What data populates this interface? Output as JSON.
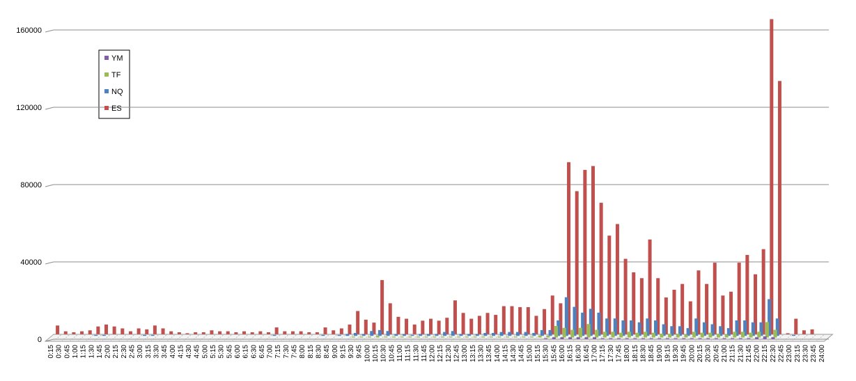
{
  "chart_data": {
    "type": "bar3d",
    "categories": [
      "0:15",
      "0:30",
      "0:45",
      "1:00",
      "1:15",
      "1:30",
      "1:45",
      "2:00",
      "2:15",
      "2:30",
      "2:45",
      "3:00",
      "3:15",
      "3:30",
      "3:45",
      "4:00",
      "4:15",
      "4:30",
      "4:45",
      "5:00",
      "5:15",
      "5:30",
      "5:45",
      "6:00",
      "6:15",
      "6:30",
      "6:45",
      "7:00",
      "7:15",
      "7:30",
      "7:45",
      "8:00",
      "8:15",
      "8:30",
      "8:45",
      "9:00",
      "9:15",
      "9:30",
      "9:45",
      "10:00",
      "10:15",
      "10:30",
      "10:45",
      "11:00",
      "11:15",
      "11:30",
      "11:45",
      "12:00",
      "12:15",
      "12:30",
      "12:45",
      "13:00",
      "13:15",
      "13:30",
      "13:45",
      "14:00",
      "14:15",
      "14:30",
      "14:45",
      "15:00",
      "15:15",
      "15:30",
      "15:45",
      "16:00",
      "16:15",
      "16:30",
      "16:45",
      "17:00",
      "17:15",
      "17:30",
      "17:45",
      "18:00",
      "18:15",
      "18:30",
      "18:45",
      "19:00",
      "19:15",
      "19:30",
      "19:45",
      "20:00",
      "20:15",
      "20:30",
      "20:45",
      "21:00",
      "21:15",
      "21:30",
      "21:45",
      "22:00",
      "22:15",
      "22:30",
      "22:45",
      "23:00",
      "23:15",
      "23:30",
      "23:45",
      "24:00"
    ],
    "series": [
      {
        "name": "YM",
        "color": "#7f5fa6",
        "values": [
          0,
          0,
          0,
          0,
          0,
          0,
          0,
          0,
          0,
          0,
          0,
          0,
          0,
          0,
          0,
          0,
          0,
          0,
          0,
          0,
          0,
          0,
          0,
          0,
          0,
          0,
          0,
          0,
          0,
          0,
          0,
          0,
          0,
          0,
          0,
          0,
          0,
          0,
          0,
          0,
          0,
          0,
          0,
          0,
          0,
          0,
          0,
          0,
          0,
          0,
          0,
          0,
          0,
          0,
          0,
          0,
          0,
          0,
          0,
          0,
          0,
          500,
          1000,
          1000,
          1000,
          1000,
          1000,
          1000,
          500,
          500,
          500,
          500,
          500,
          500,
          500,
          500,
          500,
          500,
          500,
          500,
          500,
          500,
          500,
          500,
          500,
          500,
          500,
          1000,
          1500,
          1000,
          0,
          0,
          0,
          0,
          0,
          0
        ]
      },
      {
        "name": "TF",
        "color": "#9bbb59",
        "values": [
          0,
          0,
          0,
          0,
          0,
          0,
          0,
          0,
          0,
          0,
          0,
          0,
          0,
          0,
          0,
          0,
          0,
          0,
          0,
          0,
          0,
          0,
          0,
          0,
          0,
          0,
          0,
          0,
          0,
          0,
          0,
          0,
          0,
          0,
          0,
          0,
          0,
          500,
          500,
          500,
          1000,
          500,
          500,
          500,
          500,
          500,
          500,
          500,
          500,
          500,
          500,
          500,
          500,
          500,
          500,
          500,
          500,
          500,
          500,
          500,
          1000,
          1000,
          6000,
          5000,
          4000,
          5000,
          7000,
          4000,
          3000,
          3000,
          2500,
          3000,
          2500,
          3000,
          2500,
          2000,
          2000,
          2000,
          1500,
          3000,
          2500,
          2500,
          2000,
          1500,
          3000,
          3000,
          2500,
          3000,
          8000,
          4000,
          0,
          0,
          0,
          0,
          0,
          0
        ]
      },
      {
        "name": "NQ",
        "color": "#4f81bd",
        "values": [
          0,
          0,
          0,
          0,
          0,
          500,
          500,
          0,
          0,
          0,
          0,
          500,
          500,
          0,
          0,
          0,
          0,
          0,
          0,
          0,
          0,
          0,
          0,
          0,
          0,
          0,
          0,
          500,
          0,
          0,
          0,
          0,
          0,
          500,
          0,
          500,
          1000,
          1500,
          1000,
          2500,
          3000,
          2500,
          1000,
          1000,
          500,
          1000,
          1000,
          1000,
          2000,
          2500,
          1000,
          1000,
          1000,
          1500,
          1500,
          2000,
          2000,
          2000,
          2000,
          1500,
          3000,
          3000,
          8000,
          20000,
          15000,
          12000,
          14000,
          12000,
          9000,
          9000,
          8000,
          8000,
          7000,
          9000,
          8000,
          6000,
          5000,
          5000,
          4000,
          9000,
          7000,
          6000,
          5000,
          4000,
          8000,
          8000,
          7000,
          7000,
          19000,
          9000,
          0,
          500,
          0,
          0,
          0,
          0
        ]
      },
      {
        "name": "ES",
        "color": "#c0504d",
        "values": [
          4500,
          1500,
          1000,
          1500,
          2000,
          4000,
          5000,
          4000,
          3000,
          1500,
          3000,
          2500,
          4500,
          3000,
          1500,
          1000,
          500,
          1000,
          1000,
          2000,
          1500,
          1500,
          1000,
          1500,
          1000,
          1500,
          1000,
          3500,
          1500,
          1500,
          1500,
          1000,
          1000,
          3500,
          2000,
          3000,
          5000,
          12000,
          7500,
          6000,
          28000,
          16000,
          9000,
          8000,
          5000,
          7000,
          8000,
          7000,
          8500,
          17500,
          11000,
          8000,
          9500,
          11000,
          10000,
          14500,
          14500,
          14000,
          14000,
          9500,
          13000,
          20000,
          16000,
          89000,
          74000,
          85000,
          87000,
          68000,
          51000,
          57000,
          39000,
          32000,
          29000,
          49000,
          29000,
          19000,
          23000,
          26000,
          17000,
          33000,
          26000,
          37000,
          20000,
          22000,
          37000,
          41000,
          31000,
          44000,
          163000,
          131000,
          500,
          8000,
          2000,
          2500,
          0,
          0
        ]
      }
    ],
    "ylim": [
      0,
      160000
    ],
    "yticks": [
      0,
      40000,
      80000,
      120000,
      160000
    ],
    "grid": true,
    "legend": "upper-left"
  }
}
